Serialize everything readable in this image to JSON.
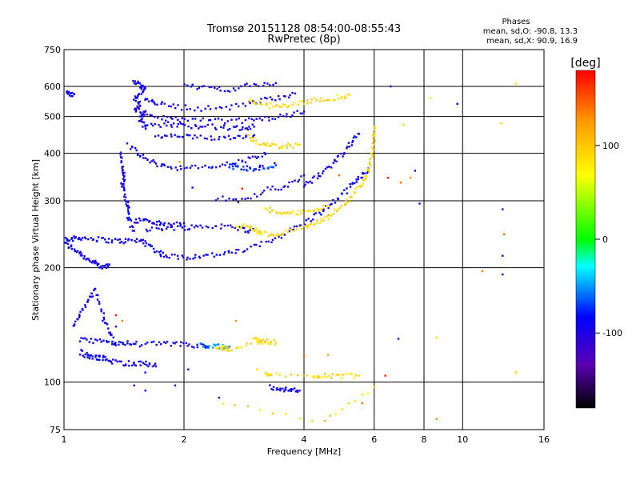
{
  "chart_data": {
    "type": "scatter",
    "title": "Tromsø 20151128 08:54:00-08:55:43",
    "subtitle": "RwPretec (8p)",
    "stats_title": "Phases",
    "stats_o": "mean, sd,O: -90.8, 13.3",
    "stats_x": "mean, sd,X:  90.9, 16.9",
    "xlabel": "Frequency [MHz]",
    "ylabel": "Stationary phase Virtual Height [km]",
    "x_scale": "log",
    "y_scale": "log",
    "xlim": [
      1,
      16
    ],
    "ylim": [
      75,
      750
    ],
    "x_ticks": [
      1,
      2,
      4,
      6,
      8,
      10,
      16
    ],
    "x_tick_labels": [
      "1",
      "2",
      "4",
      "6",
      "8",
      "10",
      "16"
    ],
    "x_grid": [
      2,
      4,
      6,
      8,
      10
    ],
    "y_ticks": [
      75,
      100,
      200,
      300,
      400,
      500,
      600,
      750
    ],
    "y_tick_labels": [
      "75",
      "100",
      "200",
      "300",
      "400",
      "500",
      "600",
      "750"
    ],
    "y_grid": [
      100,
      200,
      300,
      400,
      500,
      600
    ],
    "colorbar": {
      "label": "[deg]",
      "range": [
        -180,
        180
      ],
      "ticks": [
        100,
        0,
        -100
      ],
      "tick_labels": [
        "100",
        "0",
        "-100"
      ]
    },
    "traces": [
      {
        "phase": -95,
        "points": [
          [
            1.0,
            232
          ],
          [
            1.05,
            225
          ],
          [
            1.1,
            218
          ],
          [
            1.15,
            210
          ],
          [
            1.2,
            205
          ],
          [
            1.25,
            200
          ],
          [
            1.3,
            204
          ]
        ]
      },
      {
        "phase": -95,
        "points": [
          [
            1.0,
            240
          ],
          [
            1.05,
            238
          ],
          [
            1.1,
            240
          ],
          [
            1.2,
            238
          ],
          [
            1.3,
            236
          ],
          [
            1.4,
            235
          ],
          [
            1.5,
            236
          ],
          [
            1.6,
            235
          ]
        ]
      },
      {
        "phase": -95,
        "points": [
          [
            1.6,
            232
          ],
          [
            1.7,
            222
          ],
          [
            1.8,
            215
          ],
          [
            2.0,
            213
          ],
          [
            2.2,
            215
          ],
          [
            2.5,
            217
          ],
          [
            2.8,
            222
          ],
          [
            3.2,
            232
          ],
          [
            3.6,
            247
          ],
          [
            4.0,
            262
          ],
          [
            4.4,
            280
          ],
          [
            4.8,
            300
          ],
          [
            5.2,
            325
          ],
          [
            5.5,
            345
          ],
          [
            5.8,
            365
          ]
        ]
      },
      {
        "phase": -95,
        "points": [
          [
            1.6,
            250
          ],
          [
            1.8,
            255
          ],
          [
            2.0,
            255
          ],
          [
            2.2,
            257
          ],
          [
            2.5,
            257
          ],
          [
            2.8,
            253
          ],
          [
            3.0,
            250
          ]
        ]
      },
      {
        "phase": -95,
        "points": [
          [
            1.5,
            265
          ],
          [
            1.6,
            268
          ],
          [
            1.7,
            262
          ],
          [
            1.8,
            260
          ],
          [
            2.0,
            262
          ]
        ]
      },
      {
        "phase": -95,
        "points": [
          [
            1.45,
            420
          ],
          [
            1.55,
            395
          ],
          [
            1.65,
            380
          ],
          [
            1.8,
            370
          ],
          [
            2.0,
            365
          ],
          [
            2.3,
            368
          ],
          [
            2.6,
            375
          ],
          [
            2.9,
            385
          ],
          [
            3.2,
            398
          ]
        ]
      },
      {
        "phase": -95,
        "points": [
          [
            1.7,
            440
          ],
          [
            1.9,
            445
          ],
          [
            2.1,
            440
          ],
          [
            2.4,
            440
          ],
          [
            2.7,
            442
          ],
          [
            3.0,
            447
          ]
        ]
      },
      {
        "phase": -95,
        "points": [
          [
            1.6,
            470
          ],
          [
            1.8,
            478
          ],
          [
            2.0,
            473
          ],
          [
            2.2,
            472
          ],
          [
            2.5,
            468
          ],
          [
            2.8,
            465
          ],
          [
            3.0,
            470
          ]
        ]
      },
      {
        "phase": -95,
        "points": [
          [
            1.6,
            500
          ],
          [
            1.8,
            495
          ],
          [
            2.0,
            490
          ],
          [
            2.4,
            487
          ],
          [
            2.8,
            487
          ],
          [
            3.2,
            493
          ],
          [
            3.6,
            502
          ],
          [
            4.0,
            515
          ]
        ]
      },
      {
        "phase": -95,
        "points": [
          [
            1.6,
            560
          ],
          [
            1.7,
            545
          ],
          [
            1.9,
            530
          ],
          [
            2.2,
            525
          ],
          [
            2.6,
            528
          ],
          [
            3.0,
            545
          ],
          [
            3.4,
            560
          ],
          [
            3.8,
            575
          ]
        ]
      },
      {
        "phase": -95,
        "points": [
          [
            2.0,
            600
          ],
          [
            2.3,
            595
          ],
          [
            2.6,
            590
          ],
          [
            3.0,
            605
          ],
          [
            3.4,
            612
          ]
        ]
      },
      {
        "phase": -95,
        "points": [
          [
            1.5,
            620
          ],
          [
            1.55,
            600
          ],
          [
            1.6,
            590
          ],
          [
            1.5,
            560
          ],
          [
            1.55,
            540
          ],
          [
            1.5,
            520
          ],
          [
            1.6,
            510
          ],
          [
            1.55,
            490
          ],
          [
            1.6,
            470
          ]
        ]
      },
      {
        "phase": -95,
        "points": [
          [
            1.38,
            400
          ],
          [
            1.4,
            370
          ],
          [
            1.42,
            350
          ],
          [
            1.4,
            330
          ],
          [
            1.42,
            310
          ],
          [
            1.45,
            290
          ],
          [
            1.45,
            270
          ],
          [
            1.5,
            250
          ]
        ]
      },
      {
        "phase": -95,
        "points": [
          [
            1.1,
            120
          ],
          [
            1.15,
            117
          ],
          [
            1.2,
            116
          ],
          [
            1.25,
            116
          ],
          [
            1.3,
            114
          ],
          [
            1.4,
            112
          ],
          [
            1.5,
            112
          ],
          [
            1.6,
            112
          ],
          [
            1.7,
            110
          ]
        ]
      },
      {
        "phase": -95,
        "points": [
          [
            1.1,
            129
          ],
          [
            1.2,
            128
          ],
          [
            1.3,
            127
          ],
          [
            1.4,
            127
          ],
          [
            1.5,
            126
          ],
          [
            1.7,
            126
          ],
          [
            1.9,
            126
          ],
          [
            2.1,
            125
          ],
          [
            2.3,
            124
          ]
        ]
      },
      {
        "phase": -95,
        "points": [
          [
            1.05,
            140
          ],
          [
            1.1,
            150
          ],
          [
            1.15,
            165
          ],
          [
            1.2,
            175
          ],
          [
            1.25,
            150
          ],
          [
            1.3,
            135
          ],
          [
            1.35,
            125
          ]
        ]
      },
      {
        "phase": -95,
        "points": [
          [
            4.0,
            330
          ],
          [
            4.3,
            345
          ],
          [
            4.6,
            365
          ],
          [
            4.9,
            390
          ],
          [
            5.2,
            420
          ],
          [
            5.5,
            450
          ]
        ]
      },
      {
        "phase": -95,
        "points": [
          [
            2.4,
            305
          ],
          [
            2.8,
            300
          ],
          [
            3.2,
            320
          ],
          [
            3.6,
            328
          ],
          [
            4.0,
            350
          ]
        ]
      },
      {
        "phase": -95,
        "points": [
          [
            1.0,
            575
          ],
          [
            1.03,
            573
          ],
          [
            1.06,
            572
          ]
        ]
      },
      {
        "phase": -95,
        "points": [
          [
            3.3,
            97
          ],
          [
            3.5,
            96
          ],
          [
            3.7,
            95
          ],
          [
            3.9,
            95
          ]
        ]
      },
      {
        "phase": -75,
        "points": [
          [
            2.6,
            370
          ],
          [
            2.8,
            365
          ],
          [
            3.0,
            365
          ],
          [
            3.2,
            368
          ],
          [
            3.4,
            372
          ]
        ]
      },
      {
        "phase": -60,
        "points": [
          [
            2.2,
            125
          ],
          [
            2.4,
            124
          ],
          [
            2.6,
            124
          ]
        ]
      },
      {
        "phase": 90,
        "points": [
          [
            3.0,
            248
          ],
          [
            3.3,
            245
          ],
          [
            3.6,
            248
          ],
          [
            4.0,
            255
          ],
          [
            4.3,
            262
          ],
          [
            4.6,
            272
          ],
          [
            5.0,
            290
          ],
          [
            5.3,
            310
          ],
          [
            5.6,
            335
          ],
          [
            5.8,
            360
          ],
          [
            5.9,
            390
          ],
          [
            6.0,
            430
          ],
          [
            6.0,
            470
          ]
        ]
      },
      {
        "phase": 90,
        "points": [
          [
            2.7,
            260
          ],
          [
            2.9,
            255
          ],
          [
            3.1,
            250
          ]
        ]
      },
      {
        "phase": 90,
        "points": [
          [
            2.9,
            440
          ],
          [
            3.1,
            425
          ],
          [
            3.3,
            418
          ],
          [
            3.6,
            418
          ],
          [
            3.9,
            422
          ]
        ]
      },
      {
        "phase": 90,
        "points": [
          [
            2.9,
            550
          ],
          [
            3.2,
            535
          ],
          [
            3.5,
            530
          ],
          [
            3.9,
            540
          ],
          [
            4.3,
            555
          ],
          [
            4.8,
            560
          ],
          [
            5.2,
            570
          ]
        ]
      },
      {
        "phase": 90,
        "points": [
          [
            3.2,
            285
          ],
          [
            3.5,
            280
          ],
          [
            3.8,
            278
          ],
          [
            4.2,
            282
          ],
          [
            4.6,
            290
          ]
        ]
      },
      {
        "phase": 90,
        "points": [
          [
            2.4,
            124
          ],
          [
            2.5,
            123
          ],
          [
            2.6,
            122
          ],
          [
            3.0,
            129
          ],
          [
            3.1,
            128
          ],
          [
            3.2,
            128
          ],
          [
            3.4,
            127
          ]
        ]
      },
      {
        "phase": 90,
        "points": [
          [
            3.2,
            105
          ],
          [
            3.3,
            104
          ],
          [
            4.2,
            104
          ],
          [
            4.5,
            104
          ],
          [
            5.0,
            104
          ],
          [
            5.5,
            104
          ]
        ]
      },
      {
        "phase": 90,
        "points": [
          [
            2.5,
            89
          ],
          [
            4.5,
            79
          ],
          [
            6.0,
            97
          ]
        ]
      }
    ],
    "scatter_points": [
      [
        6.6,
        600,
        -100
      ],
      [
        7.6,
        360,
        -100
      ],
      [
        7.8,
        295,
        -100
      ],
      [
        8.3,
        560,
        60
      ],
      [
        9.7,
        540,
        -100
      ],
      [
        12.5,
        480,
        90
      ],
      [
        12.6,
        285,
        -100
      ],
      [
        12.7,
        245,
        140
      ],
      [
        12.6,
        215,
        -100
      ],
      [
        12.6,
        192,
        -100
      ],
      [
        11.2,
        196,
        130
      ],
      [
        13.6,
        610,
        90
      ],
      [
        13.6,
        106,
        90
      ],
      [
        8.6,
        80,
        130
      ],
      [
        8.6,
        131,
        90
      ],
      [
        6.9,
        130,
        -100
      ],
      [
        6.5,
        345,
        170
      ],
      [
        7.0,
        335,
        140
      ],
      [
        6.4,
        104,
        170
      ],
      [
        4.0,
        117,
        140
      ],
      [
        2.8,
        323,
        170
      ],
      [
        2.1,
        325,
        -100
      ],
      [
        1.95,
        380,
        120
      ],
      [
        2.7,
        145,
        130
      ],
      [
        1.4,
        145,
        130
      ],
      [
        1.35,
        150,
        170
      ],
      [
        1.5,
        98,
        -100
      ],
      [
        1.6,
        95,
        -100
      ],
      [
        2.05,
        108,
        -100
      ],
      [
        2.45,
        91,
        -100
      ],
      [
        4.6,
        118,
        120
      ],
      [
        7.1,
        475,
        90
      ],
      [
        7.4,
        345,
        130
      ],
      [
        1.6,
        106,
        -100
      ],
      [
        3.05,
        108,
        90
      ],
      [
        1.9,
        98,
        -100
      ],
      [
        1.35,
        140,
        -100
      ],
      [
        1.25,
        145,
        -100
      ],
      [
        5.6,
        88,
        140
      ],
      [
        4.9,
        350,
        140
      ]
    ]
  }
}
